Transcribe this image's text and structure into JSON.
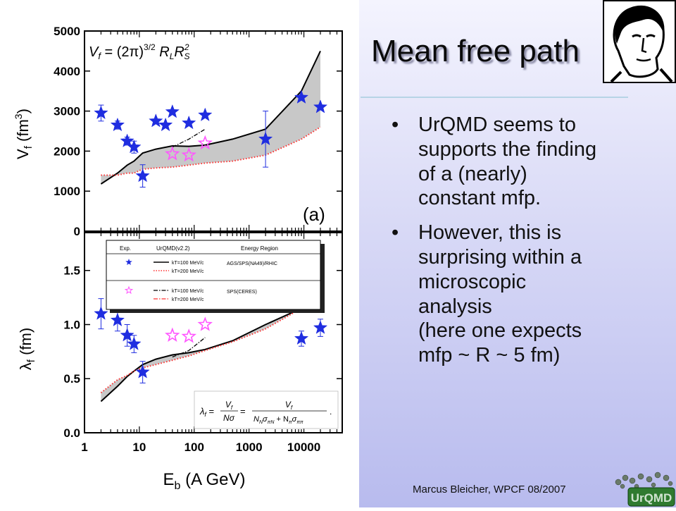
{
  "slide": {
    "title": "Mean free path",
    "bullets": [
      {
        "lines": [
          "UrQMD seems to",
          "supports the finding",
          "of a (nearly)",
          "constant mfp."
        ]
      },
      {
        "lines": [
          "However, this is",
          "surprising within a",
          "microscopic",
          "analysis",
          "(here one expects",
          "mfp ~ R ~ 5 fm)"
        ]
      }
    ],
    "footer": "Marcus Bleicher, WPCF 08/2007",
    "logo_text": "UrQMD"
  },
  "colors": {
    "star_blue": "#1f2de0",
    "open_star": "#ff55ff",
    "band_fill": "#c8c8c8",
    "red_dot": "#ff3030"
  },
  "chart_data": [
    {
      "type": "scatter",
      "panel_label": "(a)",
      "ylabel": "Vf (fm3)",
      "ylabel_main": "V",
      "ylabel_sub": "f",
      "ylabel_unit_pre": " (fm",
      "ylabel_unit_sup": "3",
      "ylabel_unit_post": ")",
      "xscale": "log",
      "xlim": [
        1,
        50000
      ],
      "ylim": [
        0,
        5000
      ],
      "y_ticks": [
        0,
        1000,
        2000,
        3000,
        4000,
        5000
      ],
      "y_tick_labels": [
        "0",
        "1000",
        "2000",
        "3000",
        "4000",
        "5000"
      ],
      "formula": "Vf = (2π)^3/2 RL RS^2",
      "formula_parts": {
        "lhs": "V",
        "lhs_sub": "f",
        "eq": " = (2π)",
        "exp": "3/2",
        "r1": " R",
        "r1_sub": "L",
        "r2": "R",
        "r2_sub": "S",
        "r2_sup": "2"
      },
      "series": [
        {
          "marker": "filled-star",
          "x": [
            2,
            4,
            6,
            8,
            11.5,
            20,
            30,
            40,
            80,
            158,
            2000,
            9000,
            20000
          ],
          "y": [
            2950,
            2650,
            2250,
            2100,
            1380,
            2750,
            2650,
            2980,
            2700,
            2900,
            2300,
            3340,
            3100
          ],
          "err": [
            200,
            100,
            100,
            150,
            280,
            0,
            0,
            0,
            0,
            0,
            700,
            0,
            0
          ]
        },
        {
          "marker": "open-star",
          "x": [
            40,
            80,
            158
          ],
          "y": [
            1930,
            1900,
            2200
          ]
        },
        {
          "line": "solid-upper",
          "x": [
            2,
            4,
            6,
            8,
            11.5,
            20,
            40,
            80,
            158,
            500,
            2000,
            9000,
            20000
          ],
          "y": [
            1180,
            1450,
            1650,
            1750,
            1950,
            2050,
            2130,
            2120,
            2150,
            2300,
            2550,
            3500,
            4500
          ]
        },
        {
          "line": "dotted-lower",
          "x": [
            2,
            4,
            6,
            8,
            11.5,
            20,
            40,
            80,
            158,
            500,
            2000,
            9000,
            20000
          ],
          "y": [
            1400,
            1400,
            1450,
            1450,
            1550,
            1580,
            1600,
            1650,
            1700,
            1750,
            1900,
            2300,
            2600
          ]
        },
        {
          "line": "dash-dot",
          "x": [
            40,
            80,
            158
          ],
          "y": [
            2100,
            2300,
            2550
          ]
        }
      ]
    },
    {
      "type": "scatter",
      "ylabel": "λf (fm)",
      "ylabel_main": "λ",
      "ylabel_sub": "f",
      "ylabel_unit_pre": " (fm)",
      "xlabel": "Eb (A GeV)",
      "xlabel_main": "E",
      "xlabel_sub": "b",
      "xlabel_unit": " (A GeV)",
      "xscale": "log",
      "xlim": [
        1,
        50000
      ],
      "ylim": [
        0,
        1.85
      ],
      "x_ticks": [
        1,
        10,
        100,
        1000,
        10000
      ],
      "x_tick_labels": [
        "1",
        "10",
        "100",
        "1000",
        "10000"
      ],
      "y_ticks": [
        0,
        0.5,
        1.0,
        1.5
      ],
      "y_tick_labels": [
        "0.0",
        "0.5",
        "1.0",
        "1.5"
      ],
      "formula": "λf = Vf/(Nσ) = Vf/(NN σπN + Nπ σππ)",
      "formula_parts": {
        "lhs": "λ",
        "lhs_sub": "f",
        "eq1": " = ",
        "num": "V",
        "num_sub": "f",
        "den1": "Nσ",
        "eq2": " = ",
        "den2": "N",
        "den2_a": "N",
        "den2_b": "σ",
        "den2_c": "πN",
        "den2_d": " + N",
        "den2_e": "π",
        "den2_f": "σ",
        "den2_g": "ππ",
        "tail": "."
      },
      "legend": {
        "headers": [
          "Exp.",
          "UrQMD(v2.2)",
          "Energy Region"
        ],
        "rows": [
          {
            "model": [
              "kT=100 MeV/c",
              "kT=200 MeV/c"
            ],
            "region": "AGS/SPS(NA49)/RHIC"
          },
          {
            "model": [
              "kT=100 MeV/c",
              "kT=200 MeV/c"
            ],
            "region": "SPS(CERES)"
          }
        ]
      },
      "series": [
        {
          "marker": "filled-star",
          "x": [
            2,
            4,
            6,
            8,
            11.5,
            9000,
            20000
          ],
          "y": [
            1.1,
            1.04,
            0.9,
            0.82,
            0.56,
            0.87,
            0.97
          ],
          "err": [
            0.14,
            0.1,
            0.1,
            0.08,
            0.1,
            0.07,
            0.08
          ]
        },
        {
          "marker": "open-star",
          "x": [
            40,
            80,
            158
          ],
          "y": [
            0.9,
            0.89,
            1.0
          ]
        },
        {
          "line": "solid-lower",
          "x": [
            2,
            4,
            6,
            8,
            11.5,
            20,
            40,
            80,
            158,
            500,
            2000,
            9000,
            20000
          ],
          "y": [
            0.29,
            0.43,
            0.52,
            0.57,
            0.63,
            0.68,
            0.72,
            0.74,
            0.77,
            0.85,
            1.0,
            1.15,
            1.22
          ]
        },
        {
          "line": "dotted-upper",
          "x": [
            2,
            4,
            6,
            8,
            11.5,
            20,
            40,
            80,
            158,
            500,
            2000,
            9000,
            20000
          ],
          "y": [
            0.37,
            0.49,
            0.53,
            0.57,
            0.6,
            0.63,
            0.67,
            0.71,
            0.76,
            0.84,
            0.96,
            1.15,
            1.22
          ]
        },
        {
          "line": "dash-dot",
          "x": [
            40,
            80,
            158
          ],
          "y": [
            0.7,
            0.76,
            0.88
          ]
        }
      ]
    }
  ]
}
